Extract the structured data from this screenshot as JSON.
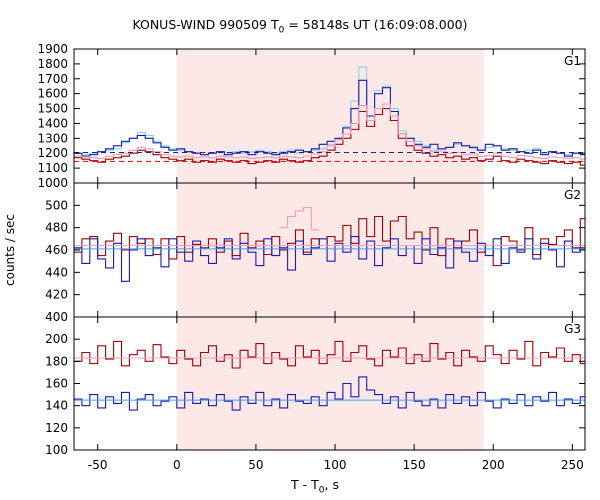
{
  "title": {
    "prefix": "KONUS-WIND 990509 T",
    "sub": "0",
    "suffix": " = 58148s UT (16:09:08.000)"
  },
  "xlabel": {
    "prefix": "T - T",
    "sub": "0",
    "suffix": ", s"
  },
  "ylabel": "counts / sec",
  "colors": {
    "shade": "#fde8e8",
    "series_red": "#a00000",
    "series_blue": "#1a1aa8",
    "series_cyan": "#80d8f0",
    "series_pink": "#f09ab8",
    "bg_red": "#d00000",
    "bg_blue": "#202080",
    "fit_red": "#f0a0c0",
    "fit_blue": "#40a0ff"
  },
  "chart_data": {
    "type": "line",
    "xlim": [
      -65,
      258
    ],
    "xticks": [
      -50,
      0,
      50,
      100,
      150,
      200,
      250
    ],
    "shaded_interval": [
      0,
      194
    ],
    "step": 5,
    "panels": [
      {
        "label": "G1",
        "ylim": [
          1000,
          1900
        ],
        "yticks": [
          1000,
          1100,
          1200,
          1300,
          1400,
          1500,
          1600,
          1700,
          1800,
          1900
        ],
        "background_levels": {
          "red": 1145,
          "blue": 1205
        },
        "series": [
          {
            "color_key": "series_cyan",
            "x_start": -65,
            "values": [
              1180,
              1190,
              1200,
              1210,
              1220,
              1230,
              1270,
              1300,
              1340,
              1320,
              1280,
              1250,
              1230,
              1220,
              1210,
              1200,
              1190,
              1200,
              1210,
              1200,
              1210,
              1200,
              1210,
              1220,
              1210,
              1200,
              1210,
              1220,
              1200,
              1210,
              1220,
              1230,
              1260,
              1300,
              1380,
              1550,
              1780,
              1450,
              1620,
              1650,
              1500,
              1350,
              1300,
              1280,
              1250,
              1220,
              1230,
              1240,
              1260,
              1250,
              1230,
              1220,
              1240,
              1250,
              1230,
              1220,
              1210,
              1220,
              1230,
              1200,
              1210,
              1200,
              1190,
              1200,
              1190,
              1210
            ]
          },
          {
            "color_key": "series_blue",
            "x_start": -65,
            "values": [
              1200,
              1180,
              1190,
              1210,
              1230,
              1250,
              1280,
              1300,
              1320,
              1300,
              1270,
              1240,
              1220,
              1230,
              1210,
              1200,
              1190,
              1200,
              1210,
              1190,
              1200,
              1210,
              1190,
              1210,
              1200,
              1190,
              1200,
              1210,
              1220,
              1210,
              1230,
              1260,
              1280,
              1300,
              1370,
              1500,
              1690,
              1450,
              1600,
              1640,
              1480,
              1330,
              1300,
              1260,
              1240,
              1260,
              1230,
              1240,
              1270,
              1250,
              1240,
              1220,
              1260,
              1250,
              1220,
              1230,
              1210,
              1200,
              1220,
              1190,
              1210,
              1200,
              1180,
              1200,
              1190,
              1200
            ]
          },
          {
            "color_key": "series_red",
            "x_start": -65,
            "values": [
              1170,
              1160,
              1150,
              1140,
              1160,
              1170,
              1180,
              1200,
              1220,
              1210,
              1190,
              1170,
              1160,
              1150,
              1160,
              1140,
              1150,
              1140,
              1160,
              1150,
              1140,
              1150,
              1130,
              1140,
              1150,
              1140,
              1160,
              1150,
              1140,
              1150,
              1170,
              1180,
              1220,
              1260,
              1300,
              1360,
              1480,
              1380,
              1460,
              1500,
              1420,
              1300,
              1250,
              1220,
              1200,
              1180,
              1190,
              1170,
              1180,
              1160,
              1170,
              1150,
              1160,
              1180,
              1150,
              1140,
              1160,
              1150,
              1140,
              1130,
              1150,
              1140,
              1130,
              1140,
              1120,
              1130
            ]
          },
          {
            "color_key": "series_pink",
            "x_start": -65,
            "values": [
              1180,
              1175,
              1170,
              1165,
              1180,
              1190,
              1200,
              1220,
              1240,
              1230,
              1210,
              1190,
              1180,
              1175,
              1180,
              1170,
              1175,
              1170,
              1180,
              1175,
              1170,
              1175,
              1165,
              1170,
              1175,
              1170,
              1180,
              1175,
              1170,
              1180,
              1195,
              1210,
              1250,
              1290,
              1330,
              1400,
              1520,
              1420,
              1500,
              1530,
              1450,
              1330,
              1280,
              1250,
              1230,
              1210,
              1215,
              1200,
              1205,
              1190,
              1195,
              1180,
              1185,
              1200,
              1180,
              1170,
              1185,
              1180,
              1170,
              1165,
              1175,
              1170,
              1165,
              1170,
              1160,
              1165
            ]
          }
        ]
      },
      {
        "label": "G2",
        "ylim": [
          400,
          520
        ],
        "yticks": [
          400,
          420,
          440,
          460,
          480,
          500
        ],
        "background_levels": {
          "red": 464,
          "blue": 461
        },
        "series": [
          {
            "color_key": "series_red",
            "x_start": -65,
            "values": [
              458,
              470,
              472,
              455,
              468,
              475,
              460,
              472,
              466,
              470,
              456,
              470,
              452,
              472,
              458,
              465,
              462,
              470,
              458,
              468,
              455,
              475,
              462,
              468,
              456,
              472,
              460,
              466,
              478,
              458,
              470,
              464,
              472,
              468,
              482,
              466,
              488,
              472,
              490,
              468,
              486,
              490,
              470,
              476,
              460,
              480,
              455,
              470,
              462,
              468,
              478,
              458,
              464,
              446,
              472,
              468,
              460,
              480,
              456,
              470,
              465,
              472,
              478,
              462,
              488,
              470
            ]
          },
          {
            "color_key": "series_blue",
            "x_start": -65,
            "values": [
              462,
              448,
              470,
              452,
              444,
              466,
              432,
              460,
              470,
              455,
              462,
              445,
              470,
              458,
              450,
              468,
              455,
              448,
              462,
              470,
              452,
              466,
              458,
              446,
              470,
              455,
              462,
              442,
              468,
              456,
              462,
              470,
              450,
              466,
              458,
              472,
              452,
              468,
              446,
              462,
              470,
              455,
              464,
              448,
              470,
              456,
              462,
              444,
              468,
              458,
              450,
              466,
              455,
              470,
              448,
              462,
              458,
              470,
              452,
              466,
              460,
              445,
              468,
              458,
              462,
              450
            ]
          },
          {
            "color_key": "series_pink",
            "x_start": 65,
            "values": [
              480,
              490,
              495,
              498,
              478
            ]
          }
        ]
      },
      {
        "label": "G3",
        "ylim": [
          100,
          220
        ],
        "yticks": [
          100,
          120,
          140,
          160,
          180,
          200
        ],
        "background_levels": {
          "red": 183,
          "blue": 145
        },
        "series": [
          {
            "color_key": "series_red",
            "x_start": -65,
            "values": [
              180,
              188,
              178,
              194,
              182,
              198,
              176,
              186,
              190,
              180,
              195,
              184,
              178,
              190,
              182,
              176,
              188,
              194,
              180,
              186,
              174,
              190,
              184,
              196,
              178,
              188,
              182,
              176,
              194,
              184,
              190,
              178,
              186,
              198,
              180,
              188,
              194,
              182,
              176,
              190,
              184,
              192,
              178,
              186,
              180,
              196,
              182,
              188,
              176,
              190,
              184,
              180,
              194,
              186,
              178,
              190,
              182,
              198,
              176,
              188,
              184,
              192,
              180,
              186,
              178,
              184
            ]
          },
          {
            "color_key": "series_blue",
            "x_start": -65,
            "values": [
              146,
              140,
              150,
              138,
              148,
              142,
              152,
              136,
              146,
              150,
              140,
              144,
              148,
              138,
              152,
              142,
              146,
              140,
              150,
              144,
              136,
              148,
              142,
              152,
              140,
              146,
              138,
              150,
              144,
              142,
              148,
              140,
              152,
              146,
              160,
              148,
              166,
              154,
              150,
              142,
              148,
              138,
              152,
              144,
              140,
              146,
              138,
              150,
              142,
              148,
              140,
              152,
              144,
              138,
              146,
              142,
              150,
              140,
              148,
              144,
              152,
              140,
              146,
              142,
              148,
              144
            ]
          }
        ]
      }
    ]
  }
}
